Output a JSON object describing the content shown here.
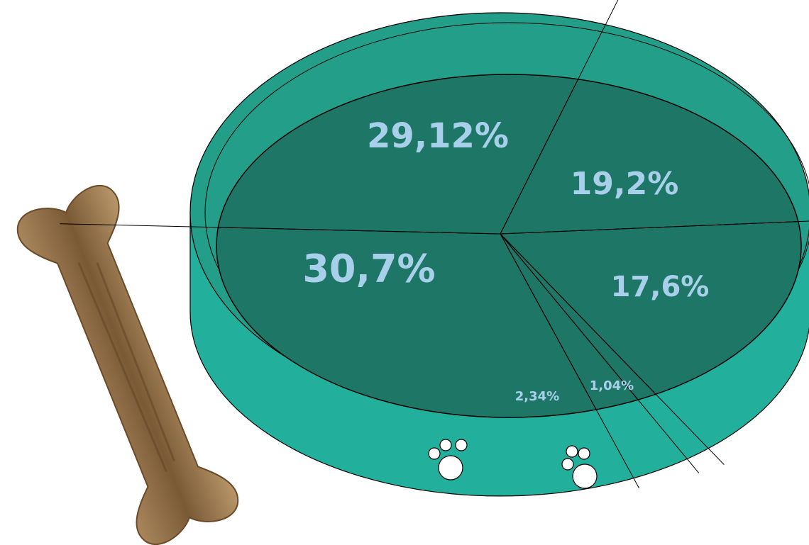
{
  "chart_data": {
    "type": "pie",
    "values": [
      19.2,
      17.6,
      1.04,
      2.34,
      30.7,
      29.12
    ],
    "value_labels": [
      "19,2%",
      "17,6%",
      "1,04%",
      "2,34%",
      "30,7%",
      "29,12%"
    ],
    "color": "#1e7766",
    "label_color": "#a9d0ea"
  }
}
